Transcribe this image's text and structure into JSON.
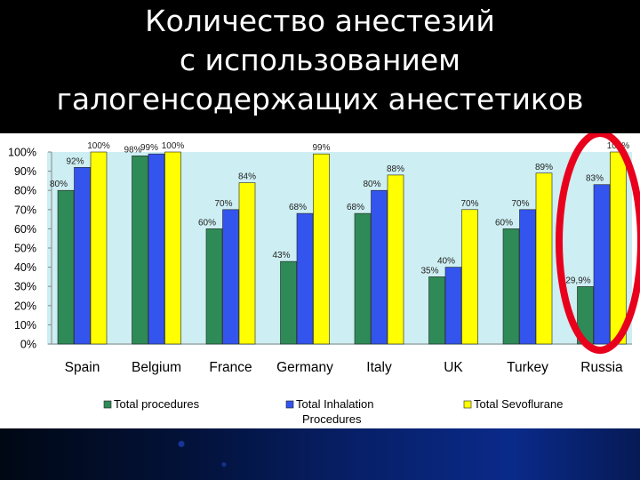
{
  "slide": {
    "title_lines": [
      "Количество анестезий",
      "с использованием",
      "галогенсодержащих анестетиков"
    ]
  },
  "colors": {
    "background": "#000000",
    "plot_area": "#cdeef2",
    "total_procedures": "#2e8b57",
    "total_inhalation": "#3355ee",
    "total_sevoflurane": "#ffff00",
    "highlight_ellipse": "#e8001c"
  },
  "chart_data": {
    "type": "bar",
    "categories": [
      "Spain",
      "Belgium",
      "France",
      "Germany",
      "Italy",
      "UK",
      "Turkey",
      "Russia"
    ],
    "series": [
      {
        "name": "Total procedures",
        "values": [
          80,
          98,
          60,
          43,
          68,
          35,
          60,
          29.9
        ],
        "labels": [
          "80%",
          "98%",
          "60%",
          "43%",
          "68%",
          "35%",
          "60%",
          "29,9%"
        ]
      },
      {
        "name": "Total Inhalation Procedures",
        "values": [
          92,
          99,
          70,
          68,
          80,
          40,
          70,
          83
        ],
        "labels": [
          "92%",
          "99%",
          "70%",
          "68%",
          "80%",
          "40%",
          "70%",
          "83%"
        ]
      },
      {
        "name": "Total Sevoflurane",
        "values": [
          100,
          100,
          84,
          99,
          88,
          70,
          89,
          100
        ],
        "labels": [
          "100%",
          "100%",
          "84%",
          "99%",
          "88%",
          "70%",
          "89%",
          "100%"
        ]
      }
    ],
    "legend_labels": [
      "Total procedures",
      "Total Inhalation",
      "Procedures",
      "Total Sevoflurane"
    ],
    "ylim": [
      0,
      100
    ],
    "yticks": [
      "0%",
      "10%",
      "20%",
      "30%",
      "40%",
      "50%",
      "60%",
      "70%",
      "80%",
      "90%",
      "100%"
    ],
    "legend_position": "bottom",
    "highlighted_category": "Russia",
    "grid": false
  }
}
